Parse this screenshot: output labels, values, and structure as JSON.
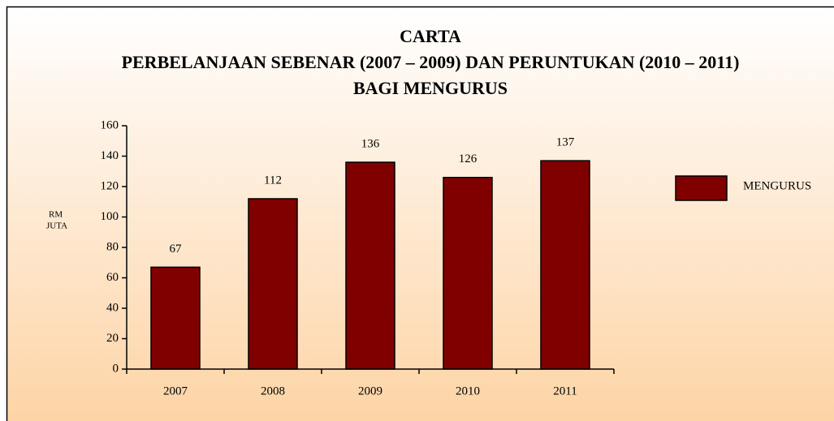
{
  "chart_data": {
    "type": "bar",
    "title": [
      "CARTA",
      "PERBELANJAAN SEBENAR (2007 – 2009) DAN PERUNTUKAN (2010 – 2011)",
      "BAGI MENGURUS"
    ],
    "y_label": [
      "RM",
      "JUTA"
    ],
    "categories": [
      "2007",
      "2008",
      "2009",
      "2010",
      "2011"
    ],
    "series": [
      {
        "name": "MENGURUS",
        "color": "#800000",
        "values": [
          67,
          112,
          136,
          126,
          137
        ]
      }
    ],
    "ylim": [
      0,
      160
    ],
    "yticks": [
      0,
      20,
      40,
      60,
      80,
      100,
      120,
      140,
      160
    ],
    "legend": "right"
  }
}
